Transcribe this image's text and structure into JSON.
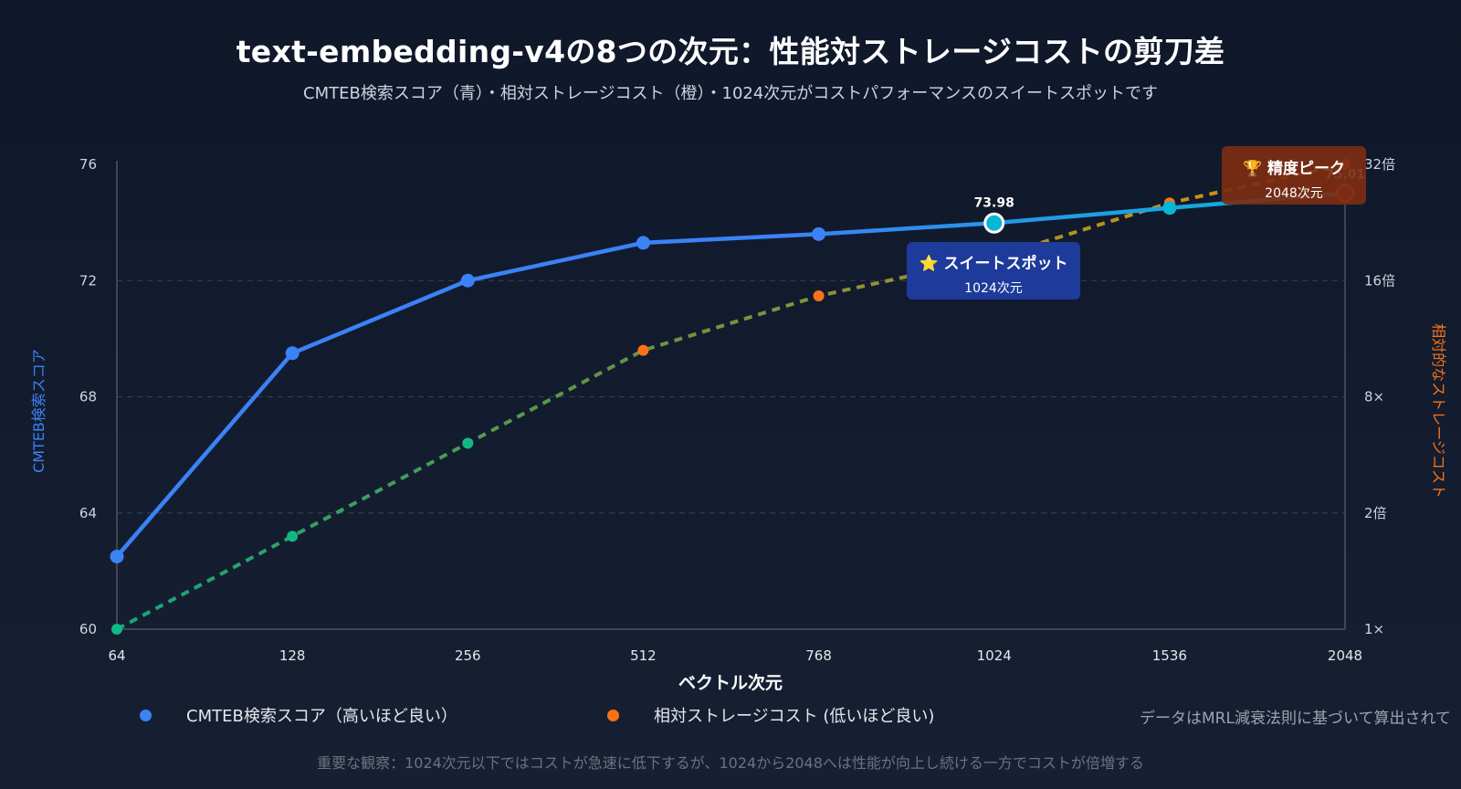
{
  "title": "text-embedding-v4の8つの次元：性能対ストレージコストの剪刀差",
  "subtitle": "CMTEB検索スコア（青）・相対ストレージコスト（橙）・1024次元がコストパフォーマンスのスイートスポットです",
  "legend": {
    "score": "CMTEB検索スコア（高いほど良い）",
    "cost": "相対ストレージコスト (低いほど良い)",
    "score_color": "#3b82f6",
    "cost_color": "#f97316"
  },
  "note_right": "データはMRL減衰法則に基づいて算出されて",
  "observation": "重要な観察：1024次元以下ではコストが急速に低下するが、1024から2048へは性能が向上し続ける一方でコストが倍増する",
  "callouts": {
    "sweet_spot_title": "⭐ スイートスポット",
    "sweet_spot_sub": "1024次元",
    "peak_title": "🏆 精度ピーク",
    "peak_sub": "2048次元"
  },
  "chart_data": {
    "type": "line",
    "x": [
      "64",
      "128",
      "256",
      "512",
      "768",
      "1024",
      "1536",
      "2048"
    ],
    "xlabel": "ベクトル次元",
    "ylabel_left": "CMTEB検索スコア",
    "ylabel_right": "相対的なストレージコスト",
    "ylim_left": [
      60,
      76
    ],
    "yticks_left": [
      "60",
      "64",
      "68",
      "72",
      "76"
    ],
    "yticks_right": [
      "1×",
      "2倍",
      "8×",
      "16倍",
      "32倍"
    ],
    "grid": true,
    "series": [
      {
        "name": "CMTEB検索スコア（高いほど良い）",
        "axis": "left",
        "values": [
          62.5,
          69.5,
          72.0,
          73.3,
          73.6,
          73.98,
          74.5,
          75.01
        ],
        "data_labels": {
          "1024": "73.98",
          "2048": "75.01"
        }
      },
      {
        "name": "相対ストレージコスト (低いほど良い)",
        "axis": "right",
        "scale": "log2",
        "values": [
          1,
          2,
          4,
          8,
          12,
          16,
          24,
          32
        ]
      }
    ]
  }
}
